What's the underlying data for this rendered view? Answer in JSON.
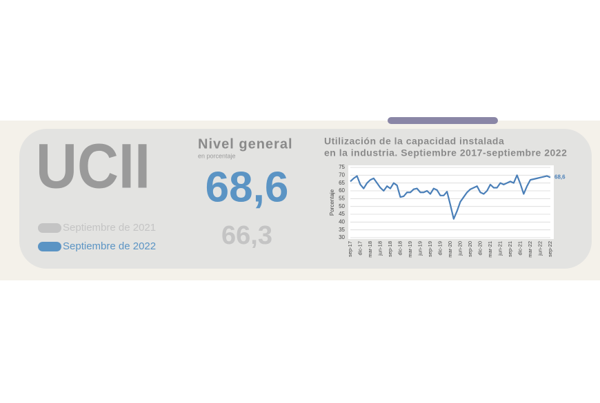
{
  "header": {
    "title": "UCII"
  },
  "legend": [
    {
      "label": "Septiembre de 2021",
      "color": "#c4c4c4"
    },
    {
      "label": "Septiembre de 2022",
      "color": "#5b94c4"
    }
  ],
  "level": {
    "title": "Nivel general",
    "subtitle": "en porcentaje",
    "current": "68,6",
    "previous": "66,3"
  },
  "chart_data": {
    "type": "line",
    "title": [
      "Utilización de la capacidad instalada",
      "en la industria. Septiembre 2017-septiembre 2022"
    ],
    "y_label": "Porcentaje",
    "categories": [
      "sep-17",
      null,
      null,
      "dic-17",
      null,
      null,
      "mar-18",
      null,
      null,
      "jun-18",
      null,
      null,
      "sep-18",
      null,
      null,
      "dic-18",
      null,
      null,
      "mar-19",
      null,
      null,
      "jun-19",
      null,
      null,
      "sep-19",
      null,
      null,
      "dic-19",
      null,
      null,
      "mar-20",
      null,
      null,
      "jun-20",
      null,
      null,
      "sep-20",
      null,
      null,
      "dic-20",
      null,
      null,
      "mar-21",
      null,
      null,
      "jun-21",
      null,
      null,
      "sep-21",
      null,
      null,
      "dic-21",
      null,
      null,
      "mar-22",
      null,
      null,
      "jun-22",
      null,
      null,
      "sep-22"
    ],
    "series": [
      {
        "name": "UCII",
        "color": "#4a7fb8",
        "values": [
          66,
          68,
          69.5,
          64,
          61.5,
          65,
          67,
          68,
          65,
          62,
          60,
          63,
          61.5,
          65,
          63.5,
          56,
          56.5,
          59,
          59,
          61,
          61.5,
          59,
          59,
          60,
          58,
          61.5,
          60.5,
          57,
          57,
          59.5,
          51,
          42,
          47,
          53,
          56,
          59,
          61,
          62,
          63,
          59,
          58,
          60,
          64,
          62,
          62,
          65,
          64,
          65,
          66,
          65,
          70,
          64.5,
          58,
          63,
          67,
          67.5,
          68,
          68.5,
          69,
          69.5,
          68.6
        ]
      }
    ],
    "end_label": {
      "value": 68.6,
      "label": "68,6"
    },
    "ylim": [
      30,
      75
    ],
    "yticks": [
      30,
      35,
      40,
      45,
      50,
      55,
      60,
      65,
      70,
      75
    ],
    "grid": true
  }
}
